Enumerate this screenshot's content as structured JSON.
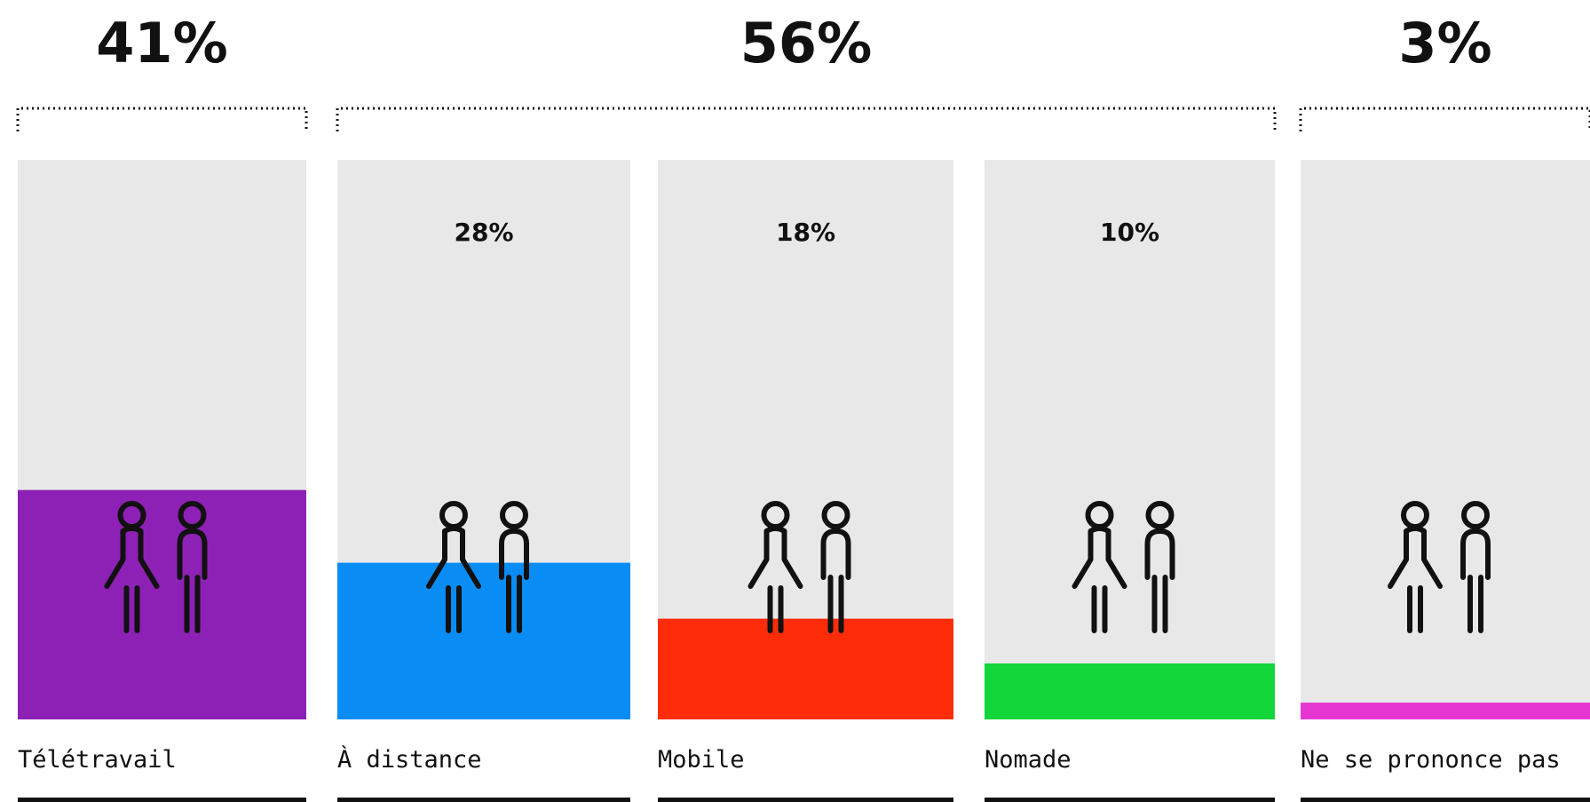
{
  "chart_data": {
    "type": "bar",
    "groups": [
      {
        "label": "41%",
        "categories": [
          "Télétravail"
        ]
      },
      {
        "label": "56%",
        "categories": [
          "À distance",
          "Mobile",
          "Nomade"
        ]
      },
      {
        "label": "3%",
        "categories": [
          "Ne se prononce pas"
        ]
      }
    ],
    "categories": [
      "Télétravail",
      "À distance",
      "Mobile",
      "Nomade",
      "Ne se prononce pas"
    ],
    "values": [
      41,
      28,
      18,
      10,
      3
    ],
    "value_labels": [
      "",
      "28%",
      "18%",
      "10%",
      ""
    ],
    "colors": [
      "#8e21b5",
      "#0a8cf5",
      "#ff2c0a",
      "#12d63a",
      "#e637d2"
    ],
    "track_color": "#e8e8e8",
    "ylim": [
      0,
      100
    ],
    "icons": [
      "woman-and-man-icon"
    ],
    "grid": false,
    "legend": "none"
  }
}
